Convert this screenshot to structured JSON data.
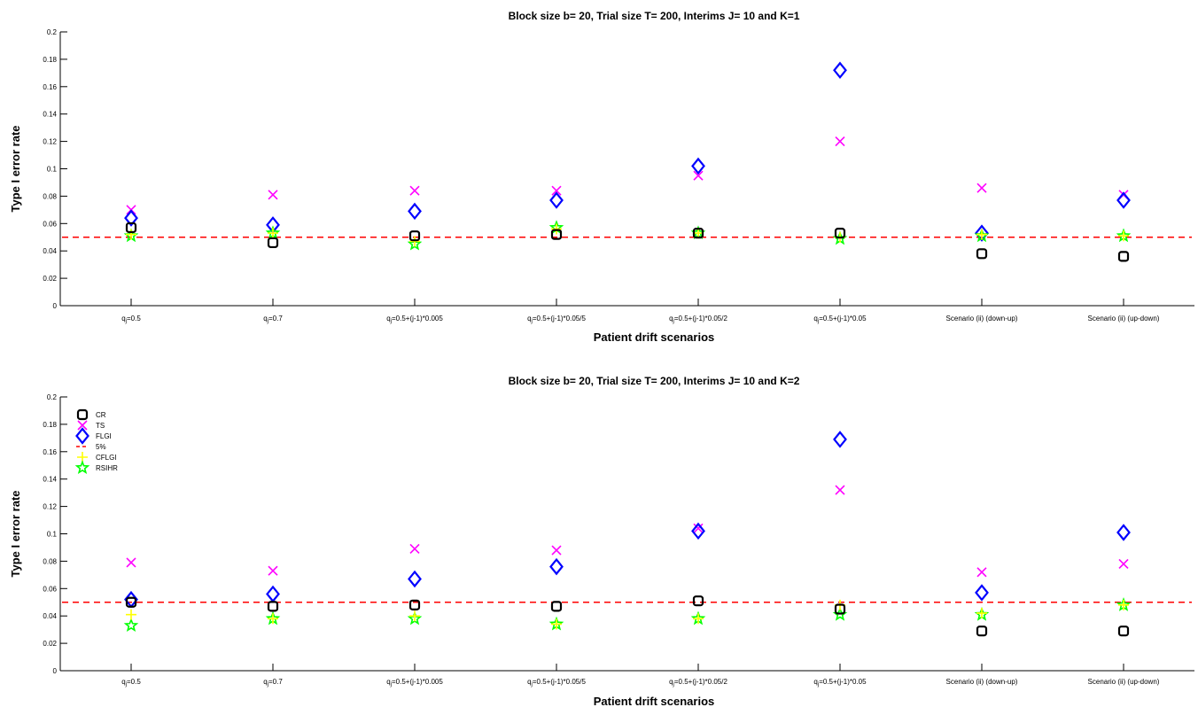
{
  "chart_data": [
    {
      "type": "scatter",
      "title": "Block size b= 20, Trial size T= 200,  Interims J= 10 and K=1",
      "xlabel": "Patient drift scenarios",
      "ylabel": "Type I error rate",
      "ylim": [
        0,
        0.2
      ],
      "yticks": [
        "0",
        "0.02",
        "0.04",
        "0.06",
        "0.08",
        "0.1",
        "0.12",
        "0.14",
        "0.16",
        "0.18",
        "0.2"
      ],
      "categories": [
        "q_j=0.5",
        "q_j=0.7",
        "q_j=0.5+(j-1)*0.005",
        "q_j=0.5+(j-1)*0.05/5",
        "q_j=0.5+(j-1)*0.05/2",
        "q_j=0.5+(j-1)*0.05",
        "Scenario (ii) (down-up)",
        "Scenario (ii) (up-down)"
      ],
      "grid": false,
      "legend": false,
      "reference_line": {
        "name": "5%",
        "y": 0.05,
        "color": "#ff0000"
      },
      "series": [
        {
          "name": "CR",
          "marker": "square",
          "color": "#000000",
          "values": [
            0.057,
            0.046,
            0.051,
            0.052,
            0.053,
            0.053,
            0.038,
            0.036
          ]
        },
        {
          "name": "TS",
          "marker": "x",
          "color": "#ff00ff",
          "values": [
            0.07,
            0.081,
            0.084,
            0.084,
            0.095,
            0.12,
            0.086,
            0.081
          ]
        },
        {
          "name": "FLGI",
          "marker": "diamond",
          "color": "#0000ff",
          "values": [
            0.064,
            0.059,
            0.069,
            0.077,
            0.102,
            0.172,
            0.053,
            0.077
          ]
        },
        {
          "name": "CFLGI",
          "marker": "plus",
          "color": "#ffff00",
          "values": [
            0.052,
            0.053,
            0.047,
            0.056,
            0.053,
            0.05,
            0.052,
            0.051
          ]
        },
        {
          "name": "RSIHR",
          "marker": "star",
          "color": "#00ff00",
          "values": [
            0.051,
            0.053,
            0.045,
            0.057,
            0.053,
            0.049,
            0.051,
            0.051
          ]
        }
      ]
    },
    {
      "type": "scatter",
      "title": "Block size b= 20, Trial size T= 200,  Interims J= 10 and K=2",
      "xlabel": "Patient drift scenarios",
      "ylabel": "Type I error rate",
      "ylim": [
        0,
        0.2
      ],
      "yticks": [
        "0",
        "0.02",
        "0.04",
        "0.06",
        "0.08",
        "0.1",
        "0.12",
        "0.14",
        "0.16",
        "0.18",
        "0.2"
      ],
      "categories": [
        "q_j=0.5",
        "q_j=0.7",
        "q_j=0.5+(j-1)*0.005",
        "q_j=0.5+(j-1)*0.05/5",
        "q_j=0.5+(j-1)*0.05/2",
        "q_j=0.5+(j-1)*0.05",
        "Scenario (ii) (down-up)",
        "Scenario (ii) (up-down)"
      ],
      "grid": false,
      "legend": "top-left",
      "reference_line": {
        "name": "5%",
        "y": 0.05,
        "color": "#ff0000"
      },
      "series": [
        {
          "name": "CR",
          "marker": "square",
          "color": "#000000",
          "values": [
            0.05,
            0.047,
            0.048,
            0.047,
            0.051,
            0.045,
            0.029,
            0.029
          ]
        },
        {
          "name": "TS",
          "marker": "x",
          "color": "#ff00ff",
          "values": [
            0.079,
            0.073,
            0.089,
            0.088,
            0.104,
            0.132,
            0.072,
            0.078
          ]
        },
        {
          "name": "FLGI",
          "marker": "diamond",
          "color": "#0000ff",
          "values": [
            0.052,
            0.056,
            0.067,
            0.076,
            0.102,
            0.169,
            0.057,
            0.101
          ]
        },
        {
          "name": "CFLGI",
          "marker": "plus",
          "color": "#ffff00",
          "values": [
            0.041,
            0.038,
            0.04,
            0.034,
            0.038,
            0.048,
            0.042,
            0.048
          ]
        },
        {
          "name": "RSIHR",
          "marker": "star",
          "color": "#00ff00",
          "values": [
            0.033,
            0.038,
            0.038,
            0.034,
            0.038,
            0.041,
            0.041,
            0.048
          ]
        }
      ]
    }
  ]
}
